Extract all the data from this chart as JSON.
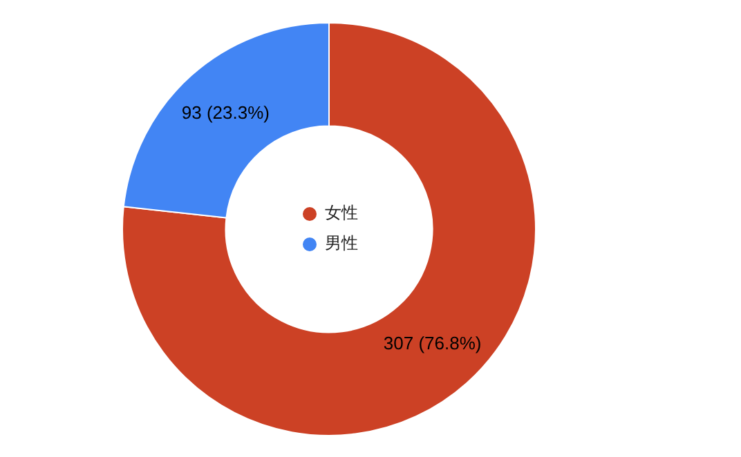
{
  "chart_data": {
    "type": "donut",
    "categories": [
      "女性",
      "男性"
    ],
    "values": [
      307,
      93
    ],
    "colors": [
      "#cc4125",
      "#4285f4"
    ],
    "value_labels": [
      "307 (76.8%)",
      "93 (23.3%)"
    ],
    "legend": "center"
  }
}
